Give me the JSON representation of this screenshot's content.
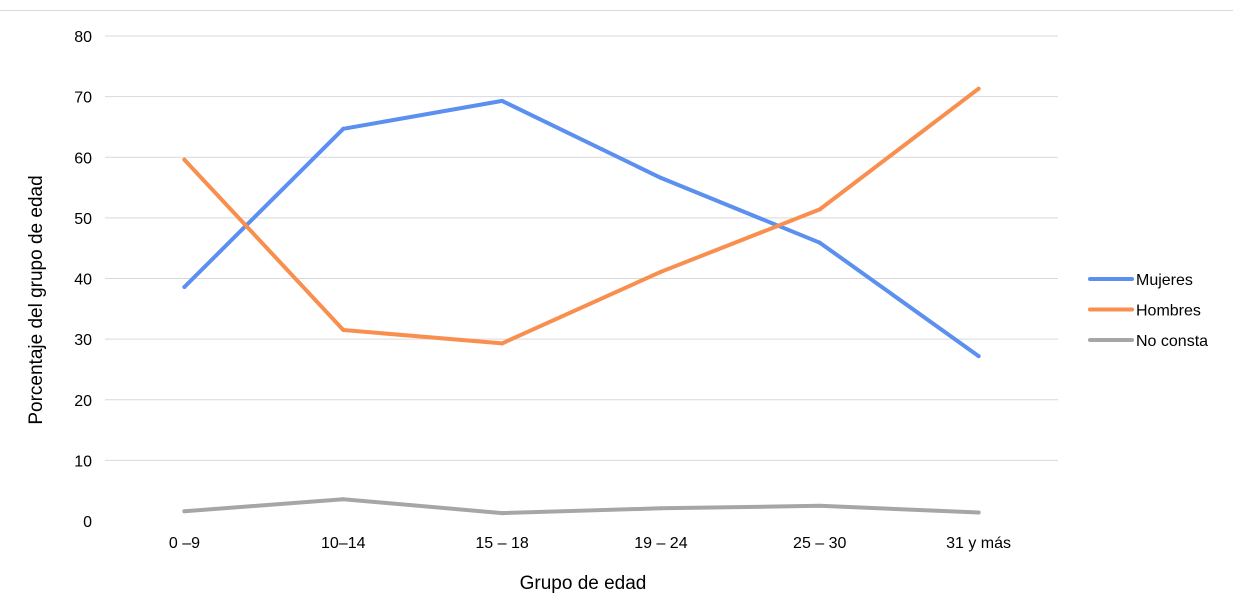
{
  "chart_data": {
    "type": "line",
    "xlabel": "Grupo de edad",
    "ylabel": "Porcentaje del grupo de edad",
    "categories": [
      "0 –9",
      "10–14",
      "15 – 18",
      "19 – 24",
      "25 – 30",
      "31 y más"
    ],
    "ylim": [
      0,
      80
    ],
    "yticks": [
      0,
      10,
      20,
      30,
      40,
      50,
      60,
      70,
      80
    ],
    "grid": true,
    "legend_position": "right",
    "series": [
      {
        "name": "Mujeres",
        "color": "#5b8ff0",
        "values": [
          38.6,
          64.7,
          69.3,
          56.6,
          45.9,
          27.2
        ]
      },
      {
        "name": "Hombres",
        "color": "#f98f4e",
        "values": [
          59.6,
          31.5,
          29.3,
          41.1,
          51.4,
          71.3
        ]
      },
      {
        "name": "No consta",
        "color": "#a6a6a6",
        "values": [
          1.6,
          3.6,
          1.3,
          2.1,
          2.5,
          1.4
        ]
      }
    ]
  }
}
